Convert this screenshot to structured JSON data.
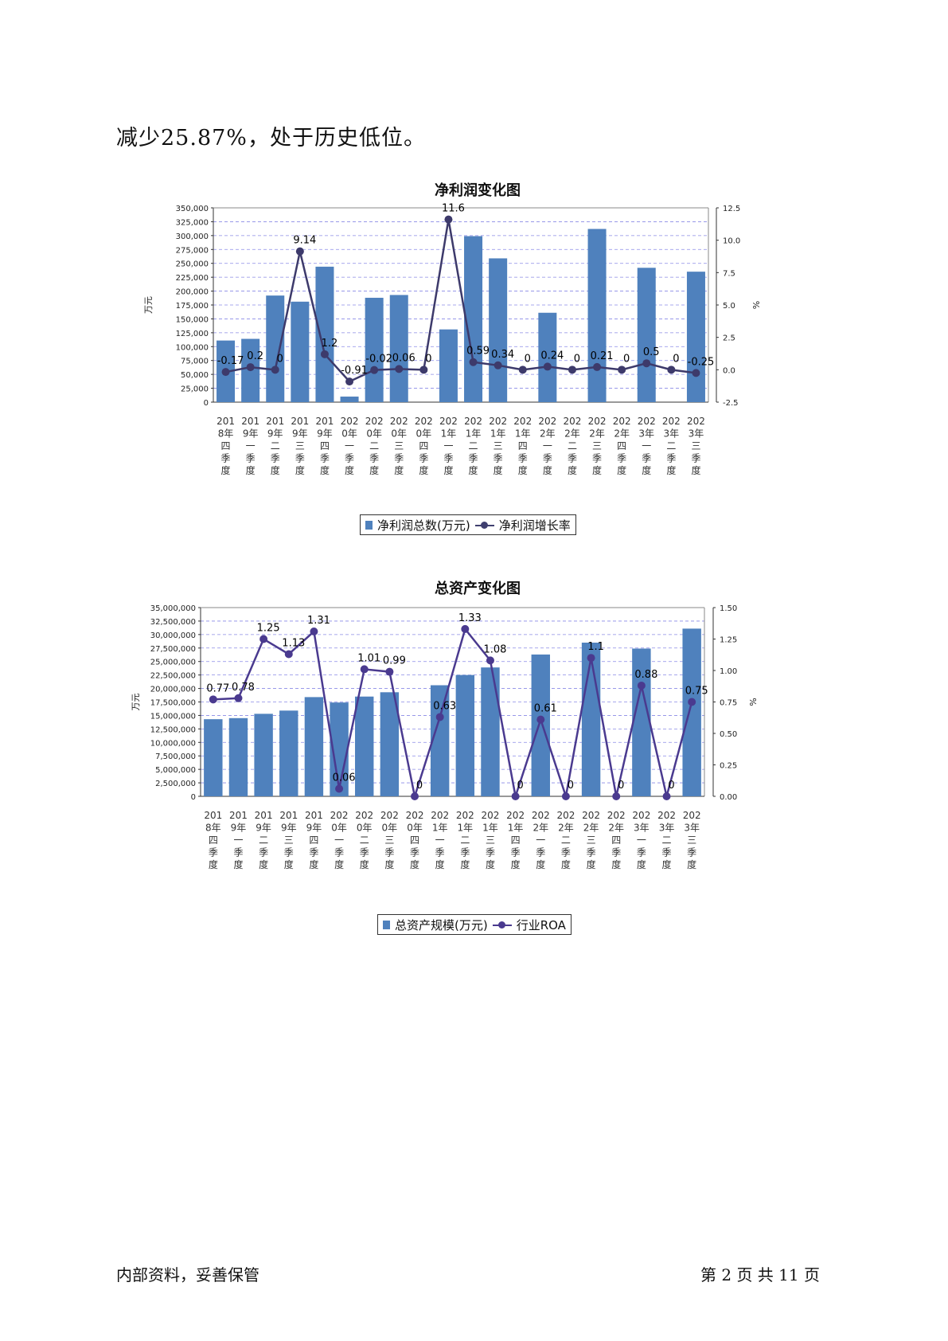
{
  "body_text": "减少25.87%，处于历史低位。",
  "footer": {
    "left": "内部资料，妥善保管",
    "right": "第 2 页   共 11 页"
  },
  "colors": {
    "bar": "#4f81bd",
    "line1": "#3d3a6b",
    "line2": "#4a3a8f",
    "grid": "#8a8ae6"
  },
  "quarter_labels": [
    "2018年四季度",
    "2019年一季度",
    "2019年二季度",
    "2019年三季度",
    "2019年四季度",
    "2020年一季度",
    "2020年二季度",
    "2020年三季度",
    "2020年四季度",
    "2021年一季度",
    "2021年二季度",
    "2021年三季度",
    "2021年四季度",
    "2022年一季度",
    "2022年二季度",
    "2022年三季度",
    "2022年四季度",
    "2023年一季度",
    "2023年二季度",
    "2023年三季度"
  ],
  "chart_data": [
    {
      "type": "bar",
      "title": "净利润变化图",
      "ylabel": "万元",
      "y2label": "%",
      "ylim": [
        0,
        350000
      ],
      "y2lim": [
        -2.5,
        12.5
      ],
      "y_ticks": [
        "0",
        "25,000",
        "50,000",
        "75,000",
        "100,000",
        "125,000",
        "150,000",
        "175,000",
        "200,000",
        "225,000",
        "250,000",
        "275,000",
        "300,000",
        "325,000",
        "350,000"
      ],
      "y2_ticks": [
        "-2.5",
        "0.0",
        "2.5",
        "5.0",
        "7.5",
        "10.0",
        "12.5"
      ],
      "grid": true,
      "legend_position": "bottom",
      "series": [
        {
          "name": "净利润总数(万元)",
          "type": "bar",
          "values": [
            111000,
            114000,
            192000,
            181000,
            244000,
            10000,
            188000,
            193000,
            0,
            131000,
            299000,
            259000,
            0,
            161000,
            0,
            312000,
            0,
            242000,
            0,
            235000
          ]
        },
        {
          "name": "净利润增长率",
          "type": "line",
          "values": [
            -0.17,
            0.2,
            0,
            9.14,
            1.2,
            -0.91,
            -0.02,
            0.06,
            0,
            11.6,
            0.59,
            0.34,
            0,
            0.24,
            0,
            0.21,
            0,
            0.5,
            0,
            -0.25
          ],
          "labels": [
            "-0.17",
            "0.2",
            "0",
            "9.14",
            "1.2",
            "-0.91",
            "-0.02",
            "0.06",
            "0",
            "11.6",
            "0.59",
            "0.34",
            "0",
            "0.24",
            "0",
            "0.21",
            "0",
            "0.5",
            "0",
            "-0.25"
          ]
        }
      ]
    },
    {
      "type": "bar",
      "title": "总资产变化图",
      "ylabel": "万元",
      "y2label": "%",
      "ylim": [
        0,
        35000000
      ],
      "y2lim": [
        0,
        1.5
      ],
      "y_ticks": [
        "0",
        "2,500,000",
        "5,000,000",
        "7,500,000",
        "10,000,000",
        "12,500,000",
        "15,000,000",
        "17,500,000",
        "20,000,000",
        "22,500,000",
        "25,000,000",
        "27,500,000",
        "30,000,000",
        "32,500,000",
        "35,000,000"
      ],
      "y2_ticks": [
        "0.00",
        "0.25",
        "0.50",
        "0.75",
        "1.00",
        "1.25",
        "1.50"
      ],
      "grid": true,
      "legend_position": "bottom",
      "series": [
        {
          "name": "总资产规模(万元)",
          "type": "bar",
          "values": [
            14300000,
            14500000,
            15300000,
            15900000,
            18400000,
            17400000,
            18500000,
            19300000,
            0,
            20600000,
            22500000,
            23900000,
            0,
            26300000,
            0,
            28500000,
            0,
            27400000,
            0,
            31100000
          ]
        },
        {
          "name": "行业ROA",
          "type": "line",
          "values": [
            0.77,
            0.78,
            1.25,
            1.13,
            1.31,
            0.06,
            1.01,
            0.99,
            0,
            0.63,
            1.33,
            1.08,
            0,
            0.61,
            0,
            1.1,
            0,
            0.88,
            0,
            0.75
          ],
          "labels": [
            "0.77",
            "0.78",
            "1.25",
            "1.13",
            "1.31",
            "0.06",
            "1.01",
            "0.99",
            "0",
            "0.63",
            "1.33",
            "1.08",
            "0",
            "0.61",
            "0",
            "1.1",
            "0",
            "0.88",
            "0",
            "0.75"
          ]
        }
      ]
    }
  ]
}
